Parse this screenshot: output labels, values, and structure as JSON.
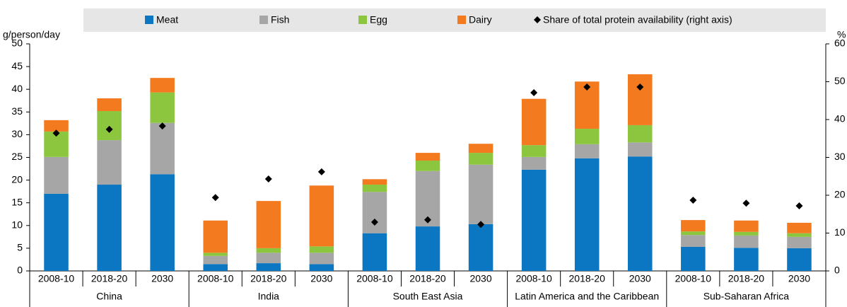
{
  "chart_data": {
    "type": "bar",
    "stacked": true,
    "y_label": "g/person/day",
    "y2_label": "%",
    "categories": [
      "2008-10",
      "2018-20",
      "2030",
      "2008-10",
      "2018-20",
      "2030",
      "2008-10",
      "2018-20",
      "2030",
      "2008-10",
      "2018-20",
      "2030",
      "2008-10",
      "2018-20",
      "2030"
    ],
    "groups": [
      "China",
      "India",
      "South East Asia",
      "Latin America and the Caribbean",
      "Sub-Saharan Africa"
    ],
    "series": [
      {
        "name": "Meat",
        "color": "#0b76c1",
        "values": [
          17.0,
          19.0,
          21.3,
          1.5,
          1.7,
          1.5,
          8.3,
          9.8,
          10.3,
          22.3,
          24.8,
          25.2,
          5.3,
          5.1,
          5.0
        ]
      },
      {
        "name": "Fish",
        "color": "#a6a6a6",
        "values": [
          8.1,
          9.8,
          11.3,
          1.8,
          2.3,
          2.5,
          9.1,
          12.2,
          13.1,
          2.8,
          3.1,
          3.1,
          2.6,
          2.7,
          2.5
        ]
      },
      {
        "name": "Egg",
        "color": "#8cc63f",
        "values": [
          5.6,
          6.4,
          6.7,
          0.7,
          1.0,
          1.4,
          1.6,
          2.3,
          2.6,
          2.6,
          3.4,
          3.8,
          0.8,
          0.8,
          0.8
        ]
      },
      {
        "name": "Dairy",
        "color": "#f47a20",
        "values": [
          2.5,
          2.8,
          3.2,
          7.1,
          10.4,
          13.4,
          1.2,
          1.7,
          2.0,
          10.2,
          10.4,
          11.2,
          2.5,
          2.5,
          2.3
        ]
      },
      {
        "name": "Share of total protein availability (right axis)",
        "color": "#000000",
        "axis": "y2",
        "values": [
          36.4,
          37.4,
          38.3,
          19.4,
          24.3,
          26.2,
          12.9,
          13.5,
          12.3,
          47.1,
          48.6,
          48.6,
          18.7,
          17.9,
          17.2
        ]
      }
    ],
    "ylim": [
      0,
      50
    ],
    "yticks": [
      0,
      5,
      10,
      15,
      20,
      25,
      30,
      35,
      40,
      45,
      50
    ],
    "y2lim": [
      0,
      60
    ],
    "y2ticks": [
      0,
      10,
      20,
      30,
      40,
      50,
      60
    ],
    "grid": false
  }
}
